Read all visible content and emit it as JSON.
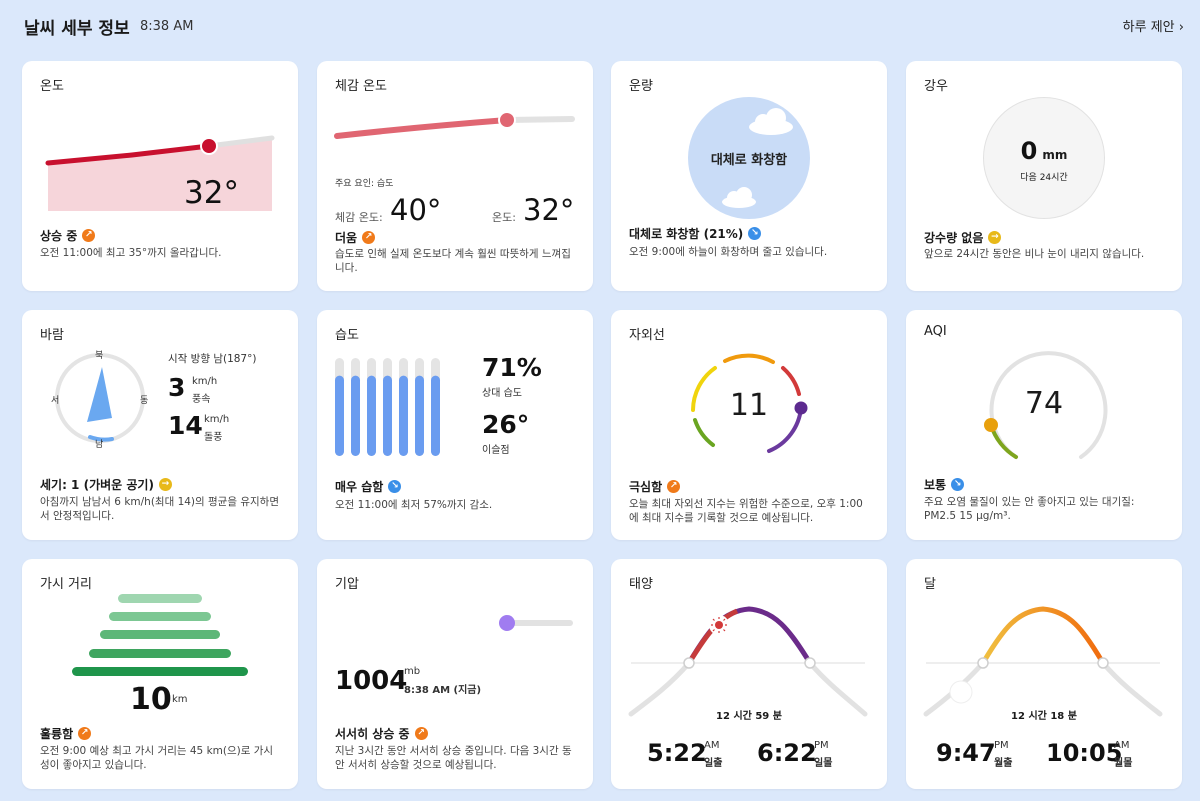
{
  "header": {
    "title": "날씨 세부 정보",
    "time": "8:38 AM",
    "daily_link": "하루 제안",
    "chevron": "›"
  },
  "temperature": {
    "title": "온도",
    "value": "32°",
    "status": "상승 중",
    "desc": "오전 11:00에 최고 35°까지 올라갑니다.",
    "accent": "#c8102e"
  },
  "feels": {
    "title": "체감 온도",
    "factor": "주요 요인: 습도",
    "feels_label": "체감 온도:",
    "feels_value": "40°",
    "temp_label": "온도:",
    "temp_value": "32°",
    "status": "더움",
    "desc": "습도로 인해 실제 온도보다 계속 훨씬 따뜻하게 느껴집니다."
  },
  "cloud": {
    "title": "운량",
    "bubble": "대체로 화창함",
    "status": "대체로 화창함 (21%)",
    "desc": "오전 9:00에 하늘이 화창하며 줄고 있습니다."
  },
  "precip": {
    "title": "강우",
    "value": "0",
    "unit": "mm",
    "period": "다음 24시간",
    "status": "강수량 없음",
    "desc": "앞으로 24시간 동안은 비나 눈이 내리지 않습니다."
  },
  "wind": {
    "title": "바람",
    "compass": {
      "n": "북",
      "s": "남",
      "e": "동",
      "w": "서"
    },
    "direction": "시작 방향 남(187°)",
    "speed": "3",
    "speed_unit": "km/h",
    "speed_label": "풍속",
    "gust": "14",
    "gust_unit": "km/h",
    "gust_label": "돌풍",
    "status": "세기: 1 (가벼운 공기)",
    "desc": "아침까지 남남서 6 km/h(최대 14)의 평균을 유지하면서 안정적입니다."
  },
  "humidity": {
    "title": "습도",
    "rh_value": "71%",
    "rh_label": "상대 습도",
    "dew_value": "26°",
    "dew_label": "이슬점",
    "status": "매우 습함",
    "desc": "오전 11:00에 최저 57%까지 감소.",
    "bar_levels": [
      0.82,
      0.82,
      0.82,
      0.82,
      0.82,
      0.82,
      0.82
    ]
  },
  "uv": {
    "title": "자외선",
    "value": "11",
    "status": "극심함",
    "desc": "오늘 최대 자외선 지수는 위험한 수준으로, 오후 1:00에 최대 지수를 기록할 것으로 예상됩니다."
  },
  "aqi": {
    "title": "AQI",
    "value": "74",
    "status": "보통",
    "desc": "주요 오염 물질이 있는 안 좋아지고 있는 대기질: PM2.5 15 μg/m³."
  },
  "visibility": {
    "title": "가시 거리",
    "value": "10",
    "unit": "km",
    "status": "훌륭함",
    "desc": "오전 9:00 예상 최고 가시 거리는 45 km(으)로 가시성이 좋아지고 있습니다."
  },
  "pressure": {
    "title": "기압",
    "value": "1004",
    "unit": "mb",
    "time": "8:38 AM (지금)",
    "status": "서서히 상승 중",
    "desc": "지난 3시간 동안 서서히 상승 중입니다. 다음 3시간 동안 서서히 상승할 것으로 예상됩니다."
  },
  "sun": {
    "title": "태양",
    "duration": "12 시간 59 분",
    "rise_time": "5:22",
    "rise_ampm": "AM",
    "rise_label": "일출",
    "set_time": "6:22",
    "set_ampm": "PM",
    "set_label": "일몰"
  },
  "moon": {
    "title": "달",
    "duration": "12 시간 18 분",
    "rise_time": "9:47",
    "rise_ampm": "PM",
    "rise_label": "월출",
    "set_time": "10:05",
    "set_ampm": "AM",
    "set_label": "월몰"
  }
}
